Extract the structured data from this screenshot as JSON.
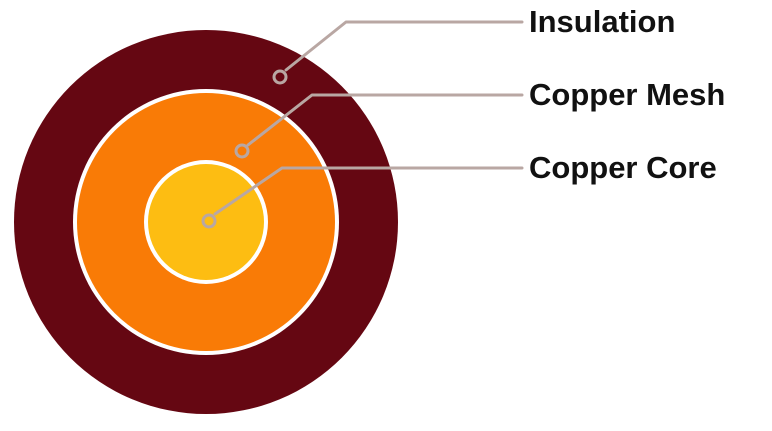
{
  "diagram": {
    "layers": [
      {
        "id": "insulation",
        "label": "Insulation",
        "color": "#650712"
      },
      {
        "id": "copper-mesh",
        "label": "Copper Mesh",
        "color": "#f97b06"
      },
      {
        "id": "copper-core",
        "label": "Copper Core",
        "color": "#fdbd12"
      }
    ],
    "separator_color": "#ffffff",
    "leader_color": "#b9a7a3"
  }
}
